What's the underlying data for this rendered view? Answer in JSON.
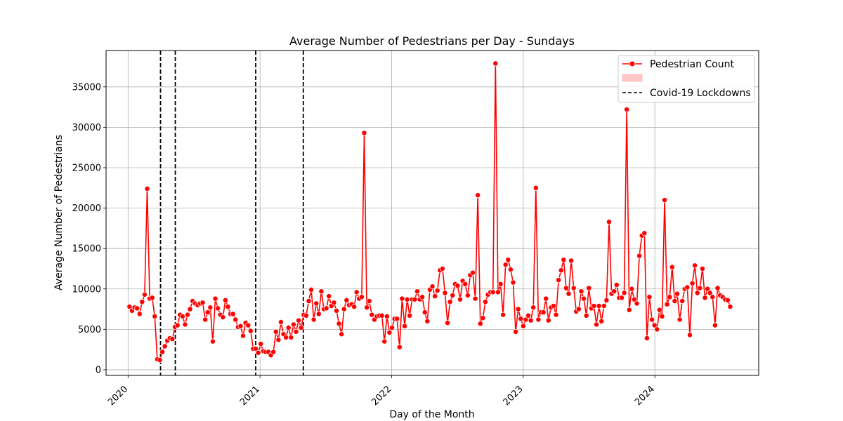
{
  "chart_data": {
    "type": "line",
    "title": "Average Number of Pedestrians per Day - Sundays",
    "xlabel": "Day of the Month",
    "ylabel": "Average Number of Pedestrians",
    "xlim": [
      "2019-11-01",
      "2024-10-15"
    ],
    "ylim": [
      -700,
      39500
    ],
    "y_ticks": [
      0,
      5000,
      10000,
      15000,
      20000,
      25000,
      30000,
      35000
    ],
    "x_ticks": [
      {
        "date": "2020-01-01",
        "label": "2020"
      },
      {
        "date": "2021-01-01",
        "label": "2021"
      },
      {
        "date": "2022-01-01",
        "label": "2022"
      },
      {
        "date": "2023-01-01",
        "label": "2023"
      },
      {
        "date": "2024-01-01",
        "label": "2024"
      }
    ],
    "grid": true,
    "legend_position": "top-right",
    "series": [
      {
        "name": "Pedestrian Count",
        "color": "#ff0000",
        "marker": "circle",
        "start_date": "2020-01-05",
        "step_days": 7,
        "values": [
          7800,
          7300,
          7700,
          7600,
          6900,
          8400,
          9300,
          22400,
          8800,
          8900,
          6600,
          1300,
          1200,
          2200,
          2900,
          3600,
          3900,
          3800,
          5300,
          5500,
          6800,
          6600,
          5600,
          6800,
          7500,
          8500,
          8200,
          8000,
          8200,
          8300,
          6200,
          7100,
          7700,
          3500,
          8800,
          7600,
          6800,
          6500,
          8600,
          7800,
          6900,
          6900,
          6200,
          5300,
          5400,
          4200,
          5800,
          5500,
          4800,
          2600,
          2600,
          2100,
          3200,
          2300,
          2200,
          2200,
          1800,
          2200,
          4700,
          3700,
          5900,
          4400,
          4000,
          5200,
          4000,
          5600,
          4700,
          6100,
          5200,
          6800,
          6700,
          8500,
          9900,
          6200,
          8200,
          6900,
          9700,
          7500,
          7600,
          9100,
          7900,
          8300,
          7300,
          5700,
          4400,
          7500,
          8600,
          8000,
          8100,
          7800,
          9600,
          8800,
          9000,
          29300,
          7700,
          8500,
          6800,
          6200,
          6600,
          6700,
          6700,
          3500,
          6600,
          4600,
          5200,
          6300,
          6300,
          2800,
          8800,
          5400,
          8700,
          6700,
          8700,
          8700,
          9700,
          8700,
          9000,
          7100,
          6000,
          9900,
          10300,
          9100,
          9800,
          12300,
          12500,
          9500,
          5800,
          8400,
          9200,
          10600,
          10400,
          8700,
          11000,
          10600,
          9200,
          11700,
          12000,
          8800,
          21600,
          5700,
          6400,
          8400,
          9300,
          9600,
          9600,
          37900,
          9600,
          10600,
          6800,
          13000,
          13600,
          12400,
          10800,
          4700,
          7500,
          6300,
          5400,
          6200,
          6700,
          6100,
          7700,
          22500,
          6200,
          7100,
          7100,
          8800,
          6100,
          7700,
          7900,
          6800,
          11100,
          12300,
          13600,
          10100,
          9400,
          13500,
          10100,
          7200,
          7500,
          9700,
          8800,
          6700,
          10100,
          7600,
          7900,
          5600,
          7900,
          6000,
          7900,
          8600,
          18300,
          9400,
          9700,
          10500,
          8900,
          8900,
          9500,
          32200,
          7400,
          10000,
          8700,
          8200,
          14100,
          16600,
          16900,
          3900,
          9000,
          6200,
          5500,
          5000,
          7400,
          6600,
          21000,
          8100,
          9000,
          12700,
          8500,
          9400,
          6200,
          8500,
          10000,
          10200,
          4300,
          10700,
          12900,
          9500,
          10100,
          12500,
          8900,
          10000,
          9500,
          9000,
          5500,
          10100,
          9200,
          9000,
          8700,
          8600,
          7800
        ]
      }
    ],
    "lockdowns": {
      "name": "Covid-19 Lockdowns",
      "color": "#000000",
      "dates": [
        "2020-03-31",
        "2020-05-11",
        "2020-12-20",
        "2021-05-01"
      ]
    }
  }
}
